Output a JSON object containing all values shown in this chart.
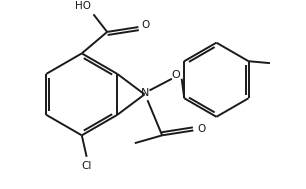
{
  "background": "#ffffff",
  "line_color": "#1a1a1a",
  "line_width": 1.4,
  "fig_width": 3.06,
  "fig_height": 1.89,
  "dpi": 100,
  "xlim": [
    0,
    306
  ],
  "ylim": [
    0,
    189
  ]
}
